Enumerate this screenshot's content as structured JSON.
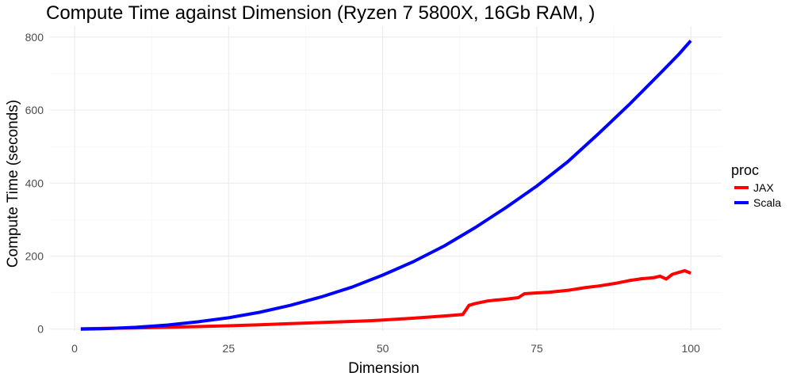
{
  "chart_data": {
    "type": "line",
    "title": "Compute Time against Dimension (Ryzen 7 5800X, 16Gb RAM, )",
    "xlabel": "Dimension",
    "ylabel": "Compute Time (seconds)",
    "xlim": [
      -4,
      105
    ],
    "ylim": [
      -5,
      830
    ],
    "xticks": [
      0,
      25,
      50,
      75,
      100
    ],
    "yticks": [
      0,
      200,
      400,
      600,
      800
    ],
    "grid": true,
    "legend": {
      "title": "proc",
      "position": "right"
    },
    "series": [
      {
        "name": "JAX",
        "color": "#ff0000",
        "x": [
          1,
          5,
          10,
          15,
          20,
          25,
          30,
          35,
          40,
          45,
          48,
          50,
          55,
          60,
          63,
          64,
          65,
          67,
          68,
          70,
          72,
          73,
          75,
          77,
          80,
          83,
          85,
          88,
          90,
          92,
          94,
          95,
          96,
          97,
          98,
          99,
          100
        ],
        "y": [
          1,
          2,
          3,
          5,
          7,
          9,
          12,
          15,
          18,
          21,
          23,
          25,
          30,
          36,
          40,
          65,
          70,
          77,
          79,
          82,
          86,
          97,
          99,
          101,
          106,
          114,
          118,
          126,
          133,
          138,
          141,
          145,
          137,
          150,
          155,
          160,
          153
        ]
      },
      {
        "name": "Scala",
        "color": "#0000ff",
        "x": [
          1,
          5,
          10,
          15,
          20,
          25,
          30,
          35,
          40,
          45,
          50,
          55,
          60,
          65,
          70,
          75,
          80,
          85,
          90,
          95,
          98,
          100
        ],
        "y": [
          0,
          1.3,
          5,
          11,
          20,
          31,
          46,
          65,
          88,
          115,
          148,
          185,
          228,
          278,
          333,
          392,
          458,
          535,
          615,
          700,
          752,
          790
        ]
      }
    ]
  }
}
